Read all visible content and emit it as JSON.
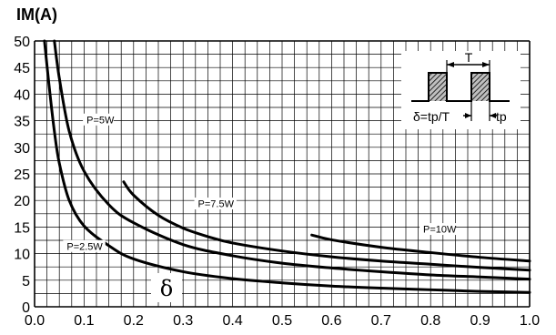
{
  "chart_data": {
    "type": "line",
    "ylabel": "IM(A)",
    "xlabel": "",
    "xlim": [
      0.0,
      1.0
    ],
    "ylim": [
      0,
      50
    ],
    "x_ticks": [
      "0.0",
      "0.1",
      "0.2",
      "0.3",
      "0.4",
      "0.5",
      "0.6",
      "0.7",
      "0.8",
      "0.9",
      "1.0"
    ],
    "y_ticks": [
      "0",
      "5",
      "10",
      "15",
      "20",
      "25",
      "30",
      "35",
      "40",
      "45",
      "50"
    ],
    "grid": true,
    "x_annotation": "δ",
    "series": [
      {
        "name": "P=2.5W",
        "x": [
          0.02,
          0.03,
          0.04,
          0.05,
          0.07,
          0.1,
          0.15,
          0.2,
          0.3,
          0.4,
          0.5,
          0.6,
          0.7,
          0.8,
          0.9,
          1.0
        ],
        "y": [
          50,
          41,
          33,
          27,
          20,
          15.2,
          11.5,
          9.0,
          6.6,
          5.3,
          4.5,
          3.9,
          3.5,
          3.2,
          2.9,
          2.7
        ]
      },
      {
        "name": "P=5W",
        "x": [
          0.04,
          0.05,
          0.07,
          0.1,
          0.15,
          0.2,
          0.3,
          0.4,
          0.5,
          0.6,
          0.7,
          0.8,
          0.9,
          1.0
        ],
        "y": [
          50,
          43,
          33,
          25.5,
          19.2,
          15.8,
          11.7,
          9.6,
          8.2,
          7.3,
          6.6,
          6.0,
          5.6,
          5.2
        ]
      },
      {
        "name": "P=7.5W",
        "x": [
          0.18,
          0.2,
          0.25,
          0.3,
          0.35,
          0.4,
          0.5,
          0.6,
          0.7,
          0.8,
          0.9,
          1.0
        ],
        "y": [
          23.5,
          21.0,
          17.2,
          14.8,
          13.2,
          12.0,
          10.5,
          9.4,
          8.6,
          8.0,
          7.4,
          6.9
        ]
      },
      {
        "name": "P=10W",
        "x": [
          0.56,
          0.6,
          0.7,
          0.8,
          0.9,
          1.0
        ],
        "y": [
          13.5,
          12.6,
          11.2,
          10.2,
          9.3,
          8.6
        ]
      }
    ],
    "curve_labels": [
      {
        "name": "P=2.5W",
        "at": [
          0.065,
          11.0
        ]
      },
      {
        "name": "P=5W",
        "at": [
          0.105,
          34.8
        ]
      },
      {
        "name": "P=7.5W",
        "at": [
          0.33,
          19.0
        ]
      },
      {
        "name": "P=10W",
        "at": [
          0.785,
          14.2
        ]
      }
    ],
    "inset": {
      "period_label": "T",
      "formula": "δ=tp/T",
      "pulse_label": "tp"
    }
  }
}
